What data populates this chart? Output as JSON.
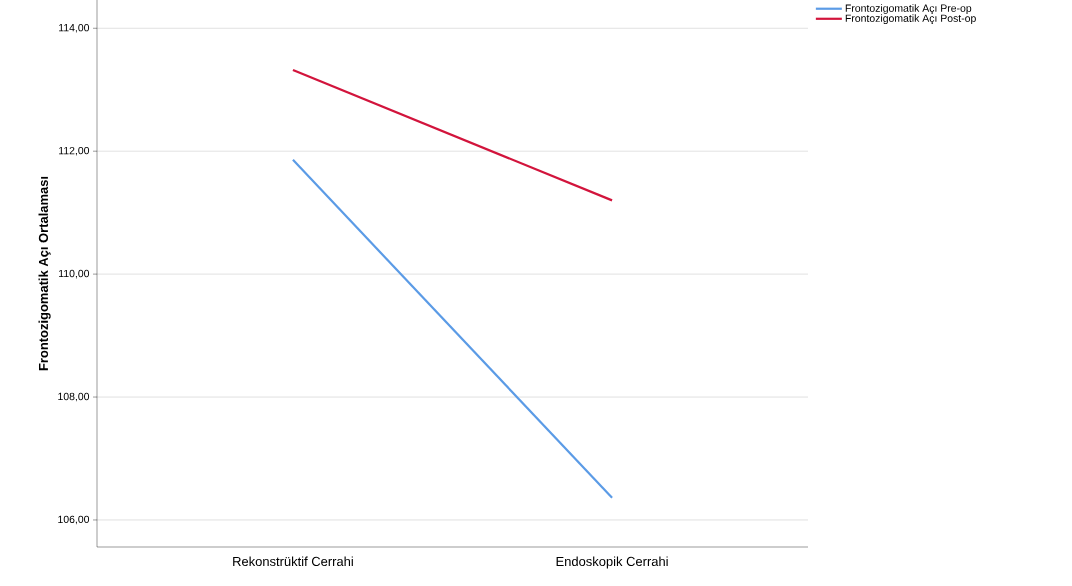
{
  "chart_data": {
    "type": "line",
    "ylabel": "Frontozigomatik Açı Ortalaması",
    "categories": [
      "Rekonstrüktif Cerrahi",
      "Endoskopik Cerrahi"
    ],
    "series": [
      {
        "name": "Frontozigomatik Açı Pre-op",
        "color": "#5b9be6",
        "values": [
          111.86,
          106.36
        ]
      },
      {
        "name": "Frontozigomatik Açı Post-op",
        "color": "#d2143c",
        "values": [
          113.32,
          111.2
        ]
      }
    ],
    "ylim": [
      105.56,
      114.46
    ],
    "yticks": [
      {
        "value": 106,
        "label": "106,00"
      },
      {
        "value": 108,
        "label": "108,00"
      },
      {
        "value": 110,
        "label": "110,00"
      },
      {
        "value": 112,
        "label": "112,00"
      },
      {
        "value": 114,
        "label": "114,00"
      }
    ],
    "grid": "y",
    "legend": "top right",
    "marker": "none",
    "line_style": "solid"
  }
}
